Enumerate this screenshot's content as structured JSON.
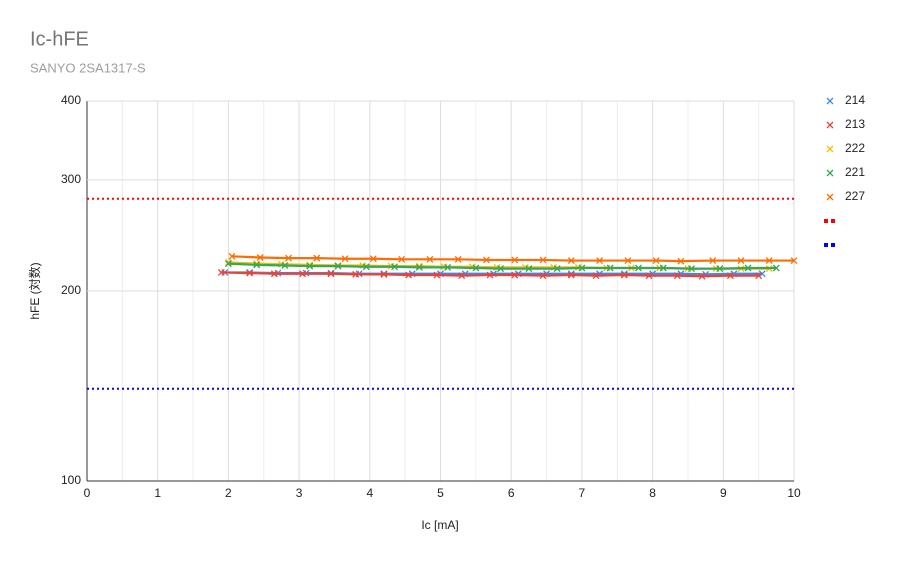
{
  "chart_data": {
    "type": "line",
    "title": "Ic-hFE",
    "subtitle": "SANYO 2SA1317-S",
    "x_label": "Ic [mA]",
    "y_label": "hFE (対数)",
    "xlim": [
      0,
      10
    ],
    "xticks": [
      0,
      1,
      2,
      3,
      4,
      5,
      6,
      7,
      8,
      9,
      10
    ],
    "ylim": [
      100,
      400
    ],
    "yticks": [
      100,
      200,
      300,
      400
    ],
    "log_y": true,
    "grid": true,
    "legend": "right",
    "series": [
      {
        "name": "214",
        "color": "#4285f4",
        "x": [
          1.95,
          2.3,
          2.7,
          3.1,
          3.45,
          3.85,
          4.2,
          4.6,
          5.0,
          5.35,
          5.75,
          6.1,
          6.5,
          6.85,
          7.25,
          7.6,
          8.0,
          8.4,
          8.75,
          9.15,
          9.55
        ],
        "values": [
          214,
          214,
          213.5,
          213.5,
          213.5,
          213,
          213,
          213,
          213,
          213,
          213,
          213,
          213,
          213,
          213,
          213,
          213,
          213,
          212.5,
          213,
          213
        ]
      },
      {
        "name": "213",
        "color": "#ea4335",
        "x": [
          1.9,
          2.3,
          2.65,
          3.05,
          3.45,
          3.8,
          4.2,
          4.55,
          4.95,
          5.3,
          5.7,
          6.05,
          6.45,
          6.85,
          7.2,
          7.6,
          7.95,
          8.35,
          8.7,
          9.1,
          9.5
        ],
        "values": [
          214,
          213.5,
          213,
          213,
          213,
          212.5,
          212.5,
          212,
          212,
          211.5,
          212,
          212,
          211.5,
          212,
          211.5,
          212,
          211.5,
          211.5,
          211,
          211.5,
          211.5
        ]
      },
      {
        "name": "222",
        "color": "#fbbc04",
        "x": [
          2.0,
          2.4,
          2.75,
          3.15,
          3.55,
          3.9,
          4.3,
          4.7,
          5.05,
          5.45,
          5.8,
          6.2,
          6.6,
          6.95,
          7.35,
          7.7,
          8.1,
          8.5,
          8.9,
          9.25,
          9.65
        ],
        "values": [
          222,
          221,
          220.5,
          220,
          219.5,
          219.5,
          219,
          219,
          218.5,
          218.5,
          218,
          218,
          218,
          218,
          217.5,
          217.5,
          217.5,
          217,
          217,
          217,
          217
        ]
      },
      {
        "name": "221",
        "color": "#34a853",
        "x": [
          2.0,
          2.4,
          2.8,
          3.15,
          3.55,
          3.95,
          4.35,
          4.7,
          5.1,
          5.5,
          5.85,
          6.25,
          6.65,
          7.0,
          7.4,
          7.8,
          8.15,
          8.55,
          8.95,
          9.35,
          9.75
        ],
        "values": [
          221,
          220,
          219.5,
          219,
          219,
          218.5,
          218.5,
          218,
          218,
          217.5,
          217,
          217,
          217,
          217.5,
          217.5,
          217.5,
          217.5,
          217,
          217,
          217.5,
          217.5
        ]
      },
      {
        "name": "227",
        "color": "#ff6d01",
        "x": [
          2.05,
          2.45,
          2.85,
          3.25,
          3.65,
          4.05,
          4.45,
          4.85,
          5.25,
          5.65,
          6.05,
          6.45,
          6.85,
          7.25,
          7.65,
          8.05,
          8.4,
          8.85,
          9.25,
          9.65,
          10.0
        ],
        "values": [
          227,
          226,
          225.5,
          225.5,
          225,
          225,
          224.5,
          224.5,
          224.5,
          224,
          224,
          224,
          223.5,
          223.5,
          223.5,
          223.5,
          223,
          223.5,
          223.5,
          223.5,
          223.5
        ]
      },
      {
        "color": "#ff0000",
        "dashed": true,
        "x": [
          0,
          10
        ],
        "values": [
          280,
          280
        ]
      },
      {
        "color": "#0000ff",
        "dashed": true,
        "x": [
          0,
          10
        ],
        "values": [
          140,
          140
        ]
      }
    ]
  }
}
